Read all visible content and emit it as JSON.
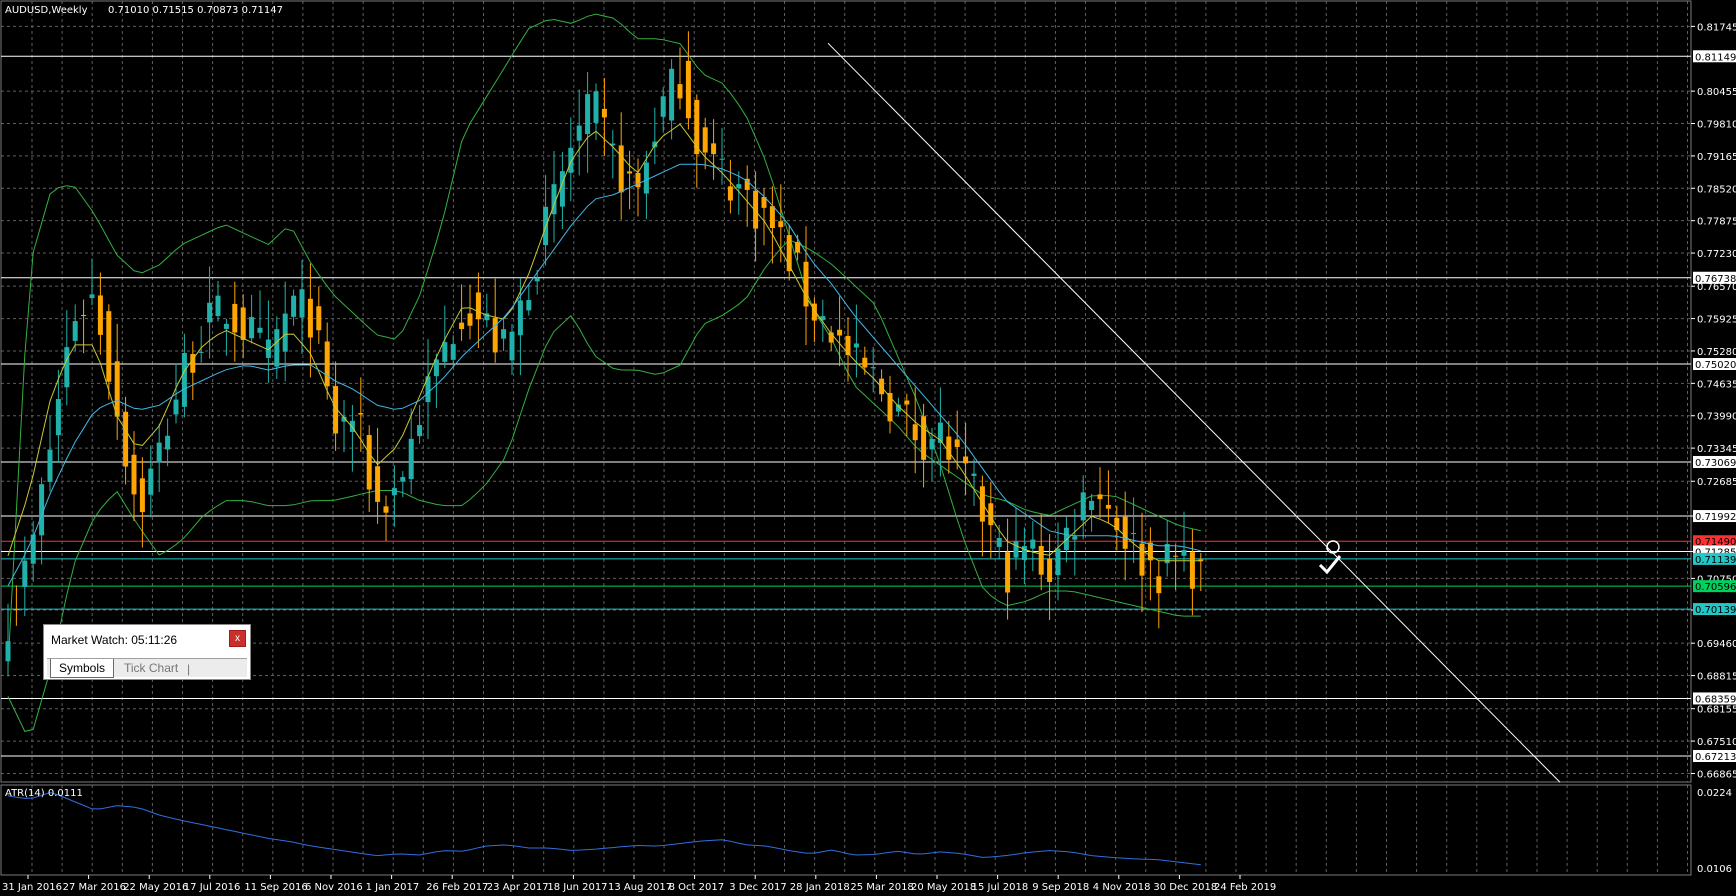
{
  "header": {
    "symbol": "AUDUSD,Weekly",
    "ohlc": "0.71010 0.71515 0.70873 0.71147"
  },
  "indicator": {
    "label": "ATR(14) 0.0111"
  },
  "market_watch": {
    "title": "Market Watch: 05:11:26",
    "close_label": "x",
    "tabs": [
      "Symbols",
      "Tick Chart"
    ]
  },
  "chart_data": {
    "type": "candlestick",
    "title": "AUDUSD,Weekly",
    "price_axis": {
      "range": [
        0.66695,
        0.8225
      ],
      "ticks": [
        "0.81745",
        "0.80455",
        "0.79810",
        "0.79165",
        "0.78520",
        "0.77875",
        "0.77230",
        "0.76570",
        "0.75925",
        "0.75280",
        "0.74635",
        "0.73990",
        "0.73345",
        "0.72685",
        "0.71992",
        "0.71285",
        "0.70750",
        "0.70120",
        "0.69460",
        "0.68815",
        "0.68155",
        "0.67510",
        "0.66865"
      ],
      "level_labels": [
        {
          "value": "0.81149",
          "color": "#ffffff"
        },
        {
          "value": "0.76738",
          "color": "#ffffff"
        },
        {
          "value": "0.75020",
          "color": "#ffffff"
        },
        {
          "value": "0.73069",
          "color": "#ffffff"
        },
        {
          "value": "0.71992",
          "color": "#ffffff"
        },
        {
          "value": "0.71490",
          "color": "#ff3030"
        },
        {
          "value": "0.71285",
          "color": "#ffffff"
        },
        {
          "value": "0.71139",
          "color": "#20c8c8"
        },
        {
          "value": "0.70596",
          "color": "#00d060"
        },
        {
          "value": "0.70139",
          "color": "#20c8c8"
        },
        {
          "value": "0.68359",
          "color": "#ffffff"
        },
        {
          "value": "0.67213",
          "color": "#ffffff"
        }
      ]
    },
    "atr_axis": {
      "range": [
        0.0095,
        0.0235
      ],
      "ticks": [
        "0.0224",
        "0.0106"
      ]
    },
    "date_ticks": [
      "31 Jan 2016",
      "27 Mar 2016",
      "22 May 2016",
      "17 Jul 2016",
      "11 Sep 2016",
      "6 Nov 2016",
      "1 Jan 2017",
      "26 Feb 2017",
      "23 Apr 2017",
      "18 Jun 2017",
      "13 Aug 2017",
      "8 Oct 2017",
      "3 Dec 2017",
      "28 Jan 2018",
      "25 Mar 2018",
      "20 May 2018",
      "15 Jul 2018",
      "9 Sep 2018",
      "4 Nov 2018",
      "30 Dec 2018",
      "24 Feb 2019"
    ],
    "close_anchors": [
      0.7,
      0.711,
      0.735,
      0.76,
      0.764,
      0.742,
      0.721,
      0.733,
      0.748,
      0.757,
      0.761,
      0.757,
      0.751,
      0.762,
      0.76,
      0.737,
      0.74,
      0.722,
      0.726,
      0.741,
      0.752,
      0.763,
      0.758,
      0.752,
      0.767,
      0.78,
      0.794,
      0.801,
      0.79,
      0.784,
      0.8,
      0.808,
      0.792,
      0.788,
      0.784,
      0.779,
      0.772,
      0.762,
      0.757,
      0.75,
      0.747,
      0.741,
      0.736,
      0.736,
      0.728,
      0.72,
      0.709,
      0.714,
      0.709,
      0.718,
      0.727,
      0.72,
      0.713,
      0.709,
      0.712,
      0.709
    ],
    "ma_fast": [
      0.712,
      0.725,
      0.744,
      0.754,
      0.754,
      0.74,
      0.733,
      0.738,
      0.748,
      0.754,
      0.757,
      0.755,
      0.753,
      0.757,
      0.752,
      0.742,
      0.737,
      0.73,
      0.734,
      0.744,
      0.754,
      0.762,
      0.76,
      0.759,
      0.768,
      0.78,
      0.791,
      0.797,
      0.793,
      0.788,
      0.795,
      0.798,
      0.792,
      0.788,
      0.783,
      0.778,
      0.77,
      0.762,
      0.756,
      0.751,
      0.747,
      0.742,
      0.738,
      0.735,
      0.729,
      0.722,
      0.715,
      0.713,
      0.712,
      0.716,
      0.72,
      0.718,
      0.714,
      0.711,
      0.711,
      0.711
    ],
    "ma_slow": [
      0.706,
      0.714,
      0.725,
      0.734,
      0.741,
      0.743,
      0.741,
      0.742,
      0.745,
      0.747,
      0.749,
      0.75,
      0.749,
      0.75,
      0.75,
      0.747,
      0.745,
      0.742,
      0.741,
      0.743,
      0.747,
      0.752,
      0.756,
      0.76,
      0.766,
      0.772,
      0.778,
      0.783,
      0.784,
      0.786,
      0.788,
      0.79,
      0.79,
      0.789,
      0.787,
      0.783,
      0.778,
      0.771,
      0.766,
      0.76,
      0.755,
      0.75,
      0.745,
      0.74,
      0.735,
      0.729,
      0.723,
      0.72,
      0.717,
      0.716,
      0.716,
      0.716,
      0.715,
      0.714,
      0.714,
      0.713
    ],
    "bb_upper": [
      0.69,
      0.77,
      0.785,
      0.786,
      0.78,
      0.772,
      0.768,
      0.77,
      0.774,
      0.776,
      0.778,
      0.776,
      0.774,
      0.778,
      0.77,
      0.764,
      0.76,
      0.756,
      0.755,
      0.764,
      0.778,
      0.796,
      0.803,
      0.81,
      0.817,
      0.819,
      0.818,
      0.82,
      0.819,
      0.815,
      0.815,
      0.814,
      0.808,
      0.806,
      0.8,
      0.79,
      0.776,
      0.762,
      0.755,
      0.746,
      0.742,
      0.738,
      0.733,
      0.73,
      0.727,
      0.724,
      0.723,
      0.721,
      0.72,
      0.722,
      0.724,
      0.724,
      0.722,
      0.72,
      0.718,
      0.717
    ],
    "bb_lower": [
      0.684,
      0.675,
      0.69,
      0.71,
      0.72,
      0.725,
      0.718,
      0.712,
      0.715,
      0.72,
      0.723,
      0.723,
      0.722,
      0.722,
      0.723,
      0.723,
      0.724,
      0.725,
      0.725,
      0.723,
      0.722,
      0.722,
      0.726,
      0.732,
      0.745,
      0.756,
      0.76,
      0.752,
      0.749,
      0.749,
      0.748,
      0.75,
      0.758,
      0.76,
      0.763,
      0.77,
      0.775,
      0.773,
      0.77,
      0.766,
      0.762,
      0.752,
      0.742,
      0.73,
      0.716,
      0.705,
      0.702,
      0.703,
      0.705,
      0.705,
      0.704,
      0.703,
      0.702,
      0.701,
      0.7,
      0.7
    ],
    "atr_values": [
      0.0218,
      0.0213,
      0.0224,
      0.021,
      0.0196,
      0.0203,
      0.02,
      0.0188,
      0.018,
      0.0173,
      0.0166,
      0.0159,
      0.0152,
      0.0147,
      0.014,
      0.0135,
      0.013,
      0.0125,
      0.0128,
      0.0126,
      0.0133,
      0.0132,
      0.014,
      0.0142,
      0.0137,
      0.0137,
      0.0133,
      0.0135,
      0.0138,
      0.0141,
      0.014,
      0.0144,
      0.0148,
      0.015,
      0.0142,
      0.014,
      0.0133,
      0.0128,
      0.0134,
      0.0126,
      0.0127,
      0.0132,
      0.0127,
      0.0131,
      0.0128,
      0.0122,
      0.0125,
      0.013,
      0.0133,
      0.0131,
      0.0125,
      0.0122,
      0.012,
      0.0119,
      0.0115,
      0.0111
    ],
    "trendline": {
      "start": [
        "28 Jan 2018",
        0.8141
      ],
      "end": [
        "after 24 Feb 2019",
        0.6669
      ]
    },
    "candle_colors": {
      "up": "#20b2aa",
      "down": "#ffa500"
    }
  }
}
